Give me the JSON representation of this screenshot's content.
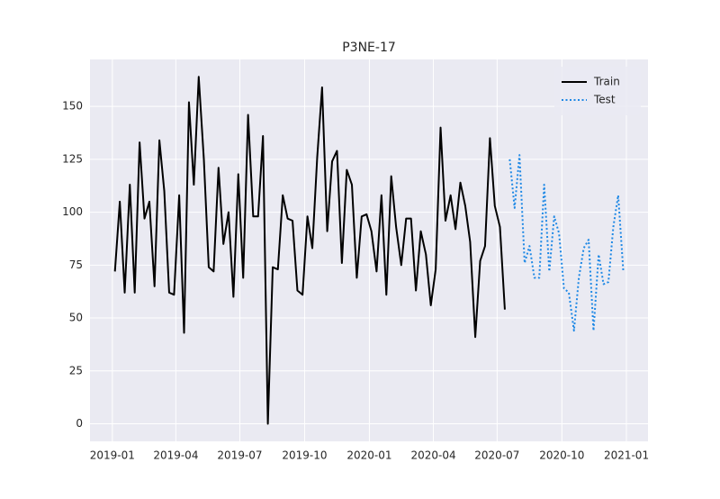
{
  "chart_data": {
    "type": "line",
    "title": "P3NE-17",
    "xlim": [
      2018.913,
      2021.084
    ],
    "ylim": [
      -8.3,
      172.2
    ],
    "xticks": [
      {
        "value": 2019.0,
        "label": "2019-01"
      },
      {
        "value": 2019.247,
        "label": "2019-04"
      },
      {
        "value": 2019.496,
        "label": "2019-07"
      },
      {
        "value": 2019.748,
        "label": "2019-10"
      },
      {
        "value": 2020.0,
        "label": "2020-01"
      },
      {
        "value": 2020.249,
        "label": "2020-04"
      },
      {
        "value": 2020.497,
        "label": "2020-07"
      },
      {
        "value": 2020.749,
        "label": "2020-10"
      },
      {
        "value": 2021.0,
        "label": "2021-01"
      }
    ],
    "yticks": [
      0,
      25,
      50,
      75,
      100,
      125,
      150
    ],
    "grid": true,
    "legend": "upper right",
    "series": [
      {
        "name": "Train",
        "color": "#000000",
        "dash": "solid",
        "x": [
          2019.01,
          2019.029,
          2019.048,
          2019.068,
          2019.087,
          2019.106,
          2019.125,
          2019.144,
          2019.164,
          2019.183,
          2019.202,
          2019.221,
          2019.24,
          2019.26,
          2019.279,
          2019.298,
          2019.317,
          2019.336,
          2019.356,
          2019.375,
          2019.394,
          2019.413,
          2019.432,
          2019.452,
          2019.471,
          2019.49,
          2019.509,
          2019.528,
          2019.548,
          2019.567,
          2019.586,
          2019.605,
          2019.624,
          2019.644,
          2019.663,
          2019.682,
          2019.701,
          2019.72,
          2019.74,
          2019.759,
          2019.778,
          2019.797,
          2019.816,
          2019.836,
          2019.855,
          2019.874,
          2019.893,
          2019.912,
          2019.932,
          2019.951,
          2019.97,
          2019.989,
          2020.008,
          2020.028,
          2020.047,
          2020.066,
          2020.085,
          2020.104,
          2020.124,
          2020.143,
          2020.162,
          2020.181,
          2020.2,
          2020.22,
          2020.239,
          2020.258,
          2020.277,
          2020.296,
          2020.316,
          2020.335,
          2020.354,
          2020.373,
          2020.392,
          2020.412,
          2020.431,
          2020.45,
          2020.469,
          2020.488,
          2020.508,
          2020.527
        ],
        "values": [
          72,
          105,
          62,
          113,
          62,
          133,
          97,
          105,
          65,
          134,
          110,
          62,
          61,
          108,
          43,
          152,
          113,
          164,
          125,
          74,
          72,
          121,
          85,
          100,
          60,
          118,
          69,
          146,
          98,
          98,
          136,
          0,
          74,
          73,
          108,
          97,
          96,
          63,
          61,
          98,
          83,
          126,
          159,
          91,
          124,
          129,
          76,
          120,
          113,
          69,
          98,
          99,
          91,
          72,
          108,
          61,
          117,
          93,
          75,
          97,
          97,
          63,
          91,
          80,
          56,
          73,
          140,
          96,
          108,
          92,
          114,
          103,
          86,
          41,
          77,
          84,
          135,
          103,
          93,
          54
        ]
      },
      {
        "name": "Test",
        "color": "#1e88e5",
        "dash": "dotted",
        "x": [
          2020.546,
          2020.565,
          2020.584,
          2020.604,
          2020.623,
          2020.642,
          2020.661,
          2020.68,
          2020.7,
          2020.719,
          2020.738,
          2020.757,
          2020.776,
          2020.796,
          2020.815,
          2020.834,
          2020.853,
          2020.872,
          2020.892,
          2020.911,
          2020.93,
          2020.949,
          2020.968,
          2020.988
        ],
        "values": [
          125,
          102,
          127,
          76,
          84,
          69,
          69,
          113,
          72,
          98,
          90,
          64,
          62,
          44,
          69,
          83,
          87,
          44,
          80,
          66,
          67,
          93,
          108,
          72
        ]
      }
    ]
  }
}
